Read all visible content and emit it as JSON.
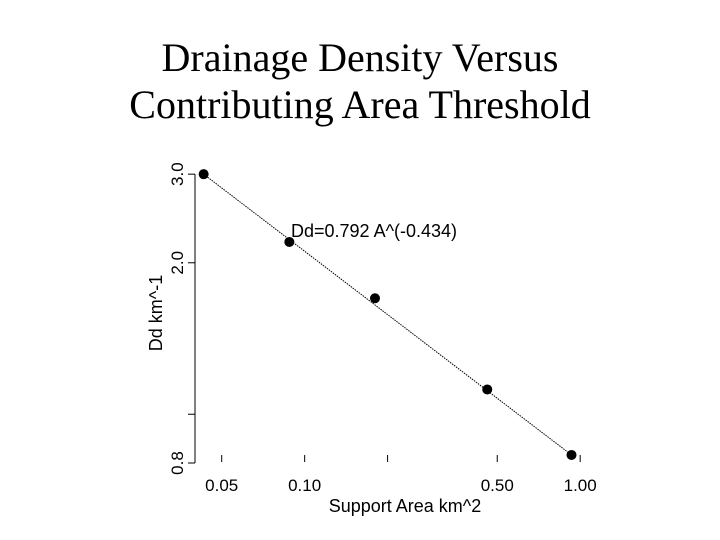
{
  "slide": {
    "title_line1": "Drainage Density Versus",
    "title_line2": "Contributing Area Threshold"
  },
  "chart_data": {
    "type": "scatter",
    "title": "Drainage Density Versus Contributing Area Threshold",
    "xlabel": "Support Area km^2",
    "ylabel": "Dd  km^-1",
    "x_scale": "log",
    "y_scale": "log",
    "xlim": [
      0.04,
      1.2
    ],
    "ylim": [
      0.8,
      3.1
    ],
    "x_ticks": [
      0.05,
      0.1,
      0.5,
      1.0
    ],
    "x_tick_labels": [
      "0.05",
      "0.10",
      "0.50",
      "1.00"
    ],
    "x_minor_ticks": [
      0.2
    ],
    "y_ticks": [
      0.8,
      2.0,
      3.0
    ],
    "y_tick_labels": [
      "0.8",
      "2.0",
      "3.0"
    ],
    "y_minor_ticks": [
      1.0
    ],
    "series": [
      {
        "points": [
          {
            "x": 0.043,
            "y": 3.0
          },
          {
            "x": 0.088,
            "y": 2.2
          },
          {
            "x": 0.18,
            "y": 1.7
          },
          {
            "x": 0.46,
            "y": 1.12
          },
          {
            "x": 0.93,
            "y": 0.83
          }
        ]
      }
    ],
    "fit_line": {
      "equation": "Dd=0.792 A^(-0.434)",
      "coef": 0.792,
      "exponent": -0.434
    },
    "grid": false,
    "legend": "none",
    "colors": {
      "points": "#000000",
      "line": "#000000",
      "axes": "#000000"
    }
  }
}
